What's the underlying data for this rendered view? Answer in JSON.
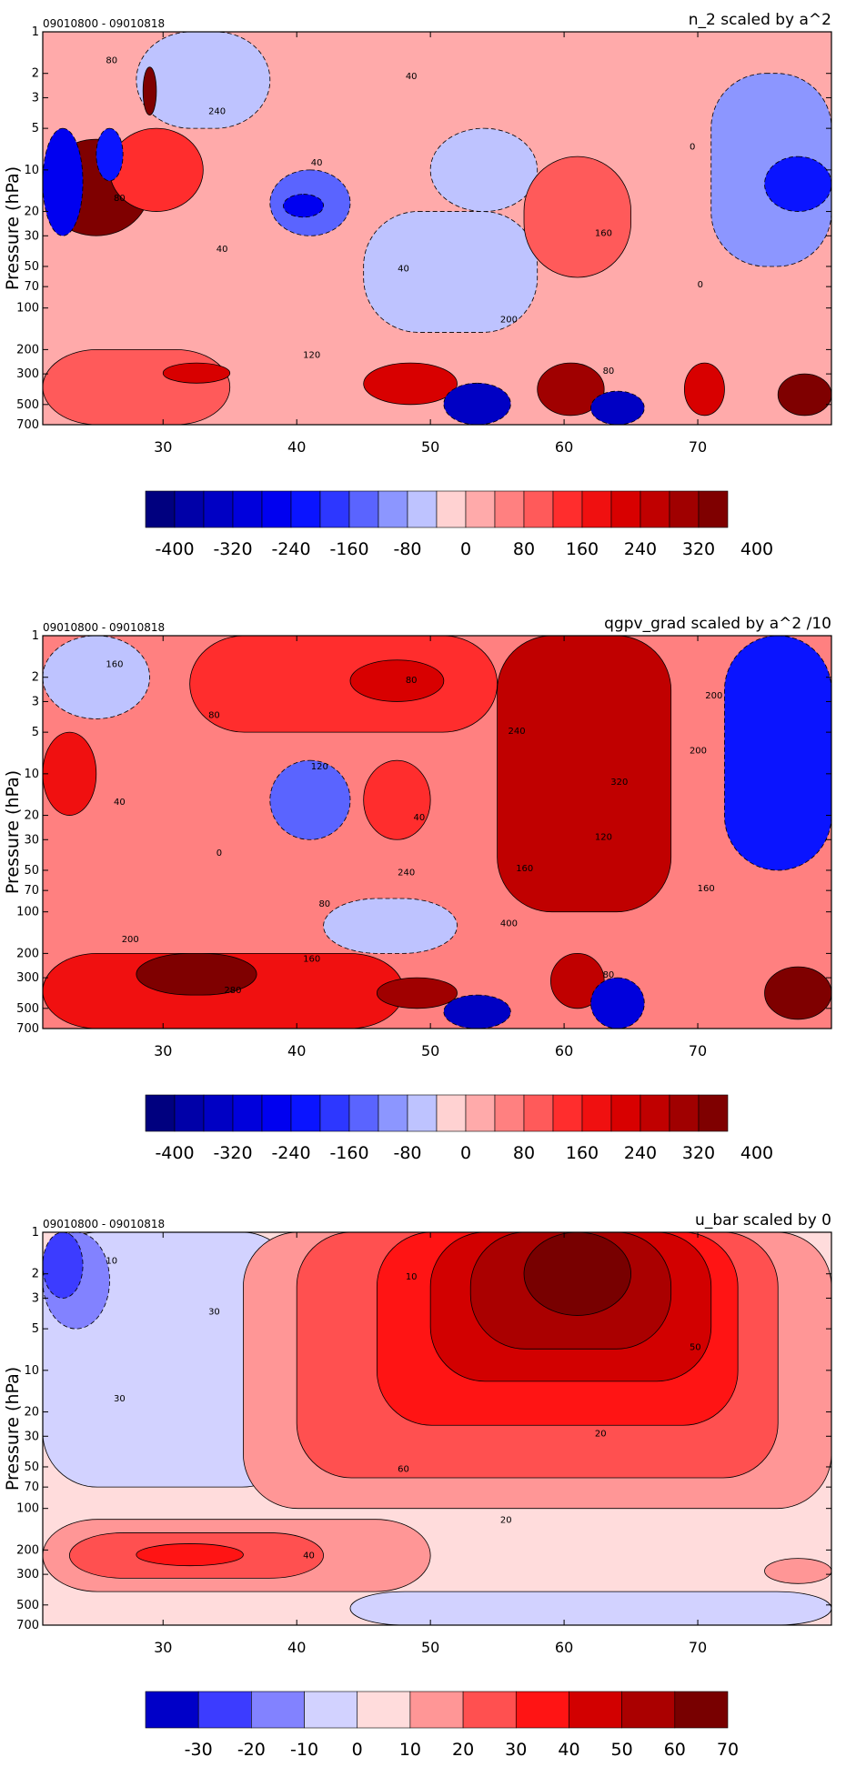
{
  "chart_data": [
    {
      "type": "heatmap",
      "title": "n_2 scaled by a^2",
      "date_range": "09010800 - 09010818",
      "ylabel": "Pressure (hPa)",
      "y_scale": "log",
      "y_ticks": [
        "1",
        "2",
        "3",
        "5",
        "10",
        "20",
        "30",
        "50",
        "70",
        "100",
        "200",
        "300",
        "500",
        "700"
      ],
      "x_ticks": [
        "30",
        "40",
        "50",
        "60",
        "70"
      ],
      "xlim": [
        21,
        80
      ],
      "ylim": [
        700,
        1
      ],
      "colorbar_ticks": [
        "-400",
        "-320",
        "-240",
        "-160",
        "-80",
        "0",
        "80",
        "160",
        "240",
        "320",
        "400"
      ],
      "colorbar_levels": [
        -400,
        -360,
        -320,
        -280,
        -240,
        -200,
        -160,
        -120,
        -80,
        -40,
        0,
        40,
        80,
        120,
        160,
        200,
        240,
        280,
        320,
        360,
        400
      ],
      "contour_labels": [
        "80",
        "40",
        "0",
        "120",
        "160",
        "240",
        "200",
        "80",
        "40",
        "0",
        "40",
        "80",
        "40"
      ],
      "regions": [
        {
          "value": 40,
          "x": [
            21,
            80
          ],
          "y": [
            1,
            700
          ]
        },
        {
          "value": -40,
          "x": [
            28,
            38
          ],
          "y": [
            1,
            5
          ]
        },
        {
          "value": 400,
          "x": [
            28.5,
            29.5
          ],
          "y": [
            1.8,
            4
          ]
        },
        {
          "value": 400,
          "x": [
            21,
            29
          ],
          "y": [
            6,
            30
          ]
        },
        {
          "value": 160,
          "x": [
            26,
            33
          ],
          "y": [
            5,
            20
          ]
        },
        {
          "value": -240,
          "x": [
            21,
            24
          ],
          "y": [
            5,
            30
          ]
        },
        {
          "value": -200,
          "x": [
            25,
            27
          ],
          "y": [
            5,
            12
          ]
        },
        {
          "value": -120,
          "x": [
            38,
            44
          ],
          "y": [
            10,
            30
          ]
        },
        {
          "value": -240,
          "x": [
            39,
            42
          ],
          "y": [
            15,
            22
          ]
        },
        {
          "value": -40,
          "x": [
            45,
            58
          ],
          "y": [
            20,
            150
          ]
        },
        {
          "value": -40,
          "x": [
            50,
            58
          ],
          "y": [
            5,
            20
          ]
        },
        {
          "value": 120,
          "x": [
            57,
            65
          ],
          "y": [
            8,
            60
          ]
        },
        {
          "value": -80,
          "x": [
            71,
            80
          ],
          "y": [
            2,
            50
          ]
        },
        {
          "value": -200,
          "x": [
            75,
            80
          ],
          "y": [
            8,
            20
          ]
        },
        {
          "value": 120,
          "x": [
            21,
            35
          ],
          "y": [
            200,
            700
          ]
        },
        {
          "value": 240,
          "x": [
            30,
            35
          ],
          "y": [
            250,
            350
          ]
        },
        {
          "value": 240,
          "x": [
            45,
            52
          ],
          "y": [
            250,
            500
          ]
        },
        {
          "value": -320,
          "x": [
            51,
            56
          ],
          "y": [
            350,
            700
          ]
        },
        {
          "value": 320,
          "x": [
            58,
            63
          ],
          "y": [
            250,
            600
          ]
        },
        {
          "value": -320,
          "x": [
            62,
            66
          ],
          "y": [
            400,
            700
          ]
        },
        {
          "value": 240,
          "x": [
            69,
            72
          ],
          "y": [
            250,
            600
          ]
        },
        {
          "value": 360,
          "x": [
            76,
            80
          ],
          "y": [
            300,
            600
          ]
        }
      ]
    },
    {
      "type": "heatmap",
      "title": "qgpv_grad scaled by a^2 /10",
      "date_range": "09010800 - 09010818",
      "ylabel": "Pressure (hPa)",
      "y_scale": "log",
      "y_ticks": [
        "1",
        "2",
        "3",
        "5",
        "10",
        "20",
        "30",
        "50",
        "70",
        "100",
        "200",
        "300",
        "500",
        "700"
      ],
      "x_ticks": [
        "30",
        "40",
        "50",
        "60",
        "70"
      ],
      "xlim": [
        21,
        80
      ],
      "ylim": [
        700,
        1
      ],
      "colorbar_ticks": [
        "-400",
        "-320",
        "-240",
        "-160",
        "-80",
        "0",
        "80",
        "160",
        "240",
        "320",
        "400"
      ],
      "colorbar_levels": [
        -400,
        -360,
        -320,
        -280,
        -240,
        -200,
        -160,
        -120,
        -80,
        -40,
        0,
        40,
        80,
        120,
        160,
        200,
        240,
        280,
        320,
        360,
        400
      ],
      "contour_labels": [
        "160",
        "240",
        "200",
        "160",
        "120",
        "80",
        "400",
        "40",
        "80",
        "160",
        "120",
        "80",
        "0",
        "240",
        "200",
        "40",
        "200",
        "80",
        "320",
        "280",
        "160"
      ],
      "regions": [
        {
          "value": 80,
          "x": [
            21,
            80
          ],
          "y": [
            1,
            700
          ]
        },
        {
          "value": -40,
          "x": [
            21,
            29
          ],
          "y": [
            1,
            4
          ]
        },
        {
          "value": 160,
          "x": [
            32,
            55
          ],
          "y": [
            1,
            5
          ]
        },
        {
          "value": 240,
          "x": [
            44,
            51
          ],
          "y": [
            1.5,
            3
          ]
        },
        {
          "value": 400,
          "x": [
            57,
            66
          ],
          "y": [
            3,
            80
          ]
        },
        {
          "value": 280,
          "x": [
            55,
            68
          ],
          "y": [
            1,
            100
          ]
        },
        {
          "value": -200,
          "x": [
            72,
            80
          ],
          "y": [
            1,
            50
          ]
        },
        {
          "value": 200,
          "x": [
            21,
            25
          ],
          "y": [
            5,
            20
          ]
        },
        {
          "value": -120,
          "x": [
            38,
            44
          ],
          "y": [
            8,
            30
          ]
        },
        {
          "value": 160,
          "x": [
            45,
            50
          ],
          "y": [
            8,
            30
          ]
        },
        {
          "value": -40,
          "x": [
            42,
            52
          ],
          "y": [
            80,
            200
          ]
        },
        {
          "value": 200,
          "x": [
            21,
            48
          ],
          "y": [
            200,
            700
          ]
        },
        {
          "value": 360,
          "x": [
            28,
            37
          ],
          "y": [
            200,
            400
          ]
        },
        {
          "value": 320,
          "x": [
            46,
            52
          ],
          "y": [
            300,
            500
          ]
        },
        {
          "value": -320,
          "x": [
            51,
            56
          ],
          "y": [
            400,
            700
          ]
        },
        {
          "value": 280,
          "x": [
            59,
            63
          ],
          "y": [
            200,
            500
          ]
        },
        {
          "value": -280,
          "x": [
            62,
            66
          ],
          "y": [
            300,
            700
          ]
        },
        {
          "value": 400,
          "x": [
            75,
            80
          ],
          "y": [
            250,
            600
          ]
        }
      ]
    },
    {
      "type": "heatmap",
      "title": "u_bar scaled by 0",
      "date_range": "09010800 - 09010818",
      "ylabel": "Pressure (hPa)",
      "y_scale": "log",
      "y_ticks": [
        "1",
        "2",
        "3",
        "5",
        "10",
        "20",
        "30",
        "50",
        "70",
        "100",
        "200",
        "300",
        "500",
        "700"
      ],
      "x_ticks": [
        "30",
        "40",
        "50",
        "60",
        "70"
      ],
      "xlim": [
        21,
        80
      ],
      "ylim": [
        700,
        1
      ],
      "colorbar_ticks": [
        "-30",
        "-20",
        "-10",
        "0",
        "10",
        "20",
        "30",
        "40",
        "50",
        "60",
        "70"
      ],
      "colorbar_levels": [
        -30,
        -20,
        -10,
        0,
        10,
        20,
        30,
        40,
        50,
        60,
        70,
        80
      ],
      "contour_labels": [
        "10",
        "60",
        "50",
        "40",
        "20",
        "30",
        "20",
        "30",
        "10"
      ],
      "regions": [
        {
          "value": 15,
          "x": [
            21,
            80
          ],
          "y": [
            1,
            700
          ]
        },
        {
          "value": 5,
          "x": [
            21,
            40
          ],
          "y": [
            1,
            70
          ]
        },
        {
          "value": -5,
          "x": [
            21,
            26
          ],
          "y": [
            1,
            5
          ]
        },
        {
          "value": -15,
          "x": [
            21,
            24
          ],
          "y": [
            1,
            3
          ]
        },
        {
          "value": 25,
          "x": [
            36,
            80
          ],
          "y": [
            1,
            100
          ]
        },
        {
          "value": 35,
          "x": [
            40,
            76
          ],
          "y": [
            1,
            60
          ]
        },
        {
          "value": 45,
          "x": [
            46,
            73
          ],
          "y": [
            1,
            25
          ]
        },
        {
          "value": 55,
          "x": [
            50,
            71
          ],
          "y": [
            1,
            12
          ]
        },
        {
          "value": 65,
          "x": [
            53,
            68
          ],
          "y": [
            1,
            7
          ]
        },
        {
          "value": 75,
          "x": [
            57,
            65
          ],
          "y": [
            1,
            4
          ]
        },
        {
          "value": 25,
          "x": [
            21,
            50
          ],
          "y": [
            120,
            400
          ]
        },
        {
          "value": 35,
          "x": [
            23,
            42
          ],
          "y": [
            150,
            320
          ]
        },
        {
          "value": 45,
          "x": [
            28,
            36
          ],
          "y": [
            180,
            260
          ]
        },
        {
          "value": 5,
          "x": [
            44,
            80
          ],
          "y": [
            400,
            700
          ]
        },
        {
          "value": 25,
          "x": [
            75,
            80
          ],
          "y": [
            230,
            350
          ]
        }
      ]
    }
  ]
}
